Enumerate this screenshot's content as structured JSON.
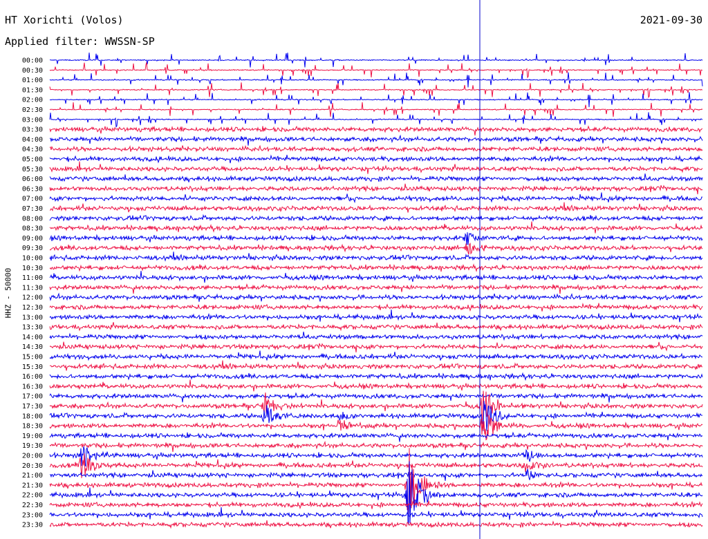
{
  "header": {
    "station": "HT Xorichti (Volos)",
    "date": "2021-09-30",
    "filter": "Applied filter: WWSSN-SP",
    "channel": "HHZ - 50000"
  },
  "colors": {
    "blue": "#0000ee",
    "red": "#ee1144",
    "marker": "#0000cc"
  },
  "chart_data": {
    "type": "seismogram-helicorder",
    "ylabel": "HHZ - 50000",
    "row_labels": [
      "00:00",
      "00:30",
      "01:00",
      "01:30",
      "02:00",
      "02:30",
      "03:00",
      "03:30",
      "04:00",
      "04:30",
      "05:00",
      "05:30",
      "06:00",
      "06:30",
      "07:00",
      "07:30",
      "08:00",
      "08:30",
      "09:00",
      "09:30",
      "10:00",
      "10:30",
      "11:00",
      "11:30",
      "12:00",
      "12:30",
      "13:00",
      "13:30",
      "14:00",
      "14:30",
      "15:00",
      "15:30",
      "16:00",
      "16:30",
      "17:00",
      "17:30",
      "18:00",
      "18:30",
      "19:00",
      "19:30",
      "20:00",
      "20:30",
      "21:00",
      "21:30",
      "22:00",
      "22:30",
      "23:00",
      "23:30"
    ],
    "row_colors": [
      "blue",
      "red"
    ],
    "sparse_until_row": 7,
    "events": [
      {
        "row": 35.5,
        "time_frac": 0.33,
        "amplitude": 18,
        "color": "blue"
      },
      {
        "row": 36.5,
        "time_frac": 0.445,
        "amplitude": 10,
        "color": "red"
      },
      {
        "row": 36.0,
        "time_frac": 0.665,
        "amplitude": 30,
        "color": "blue"
      },
      {
        "row": 40.5,
        "time_frac": 0.05,
        "amplitude": 25,
        "color": "red"
      },
      {
        "row": 41.0,
        "time_frac": 0.73,
        "amplitude": 10,
        "color": "red"
      },
      {
        "row": 43.5,
        "time_frac": 0.55,
        "amplitude": 60,
        "color": "red"
      },
      {
        "row": 18.5,
        "time_frac": 0.64,
        "amplitude": 12,
        "color": "red"
      }
    ]
  }
}
